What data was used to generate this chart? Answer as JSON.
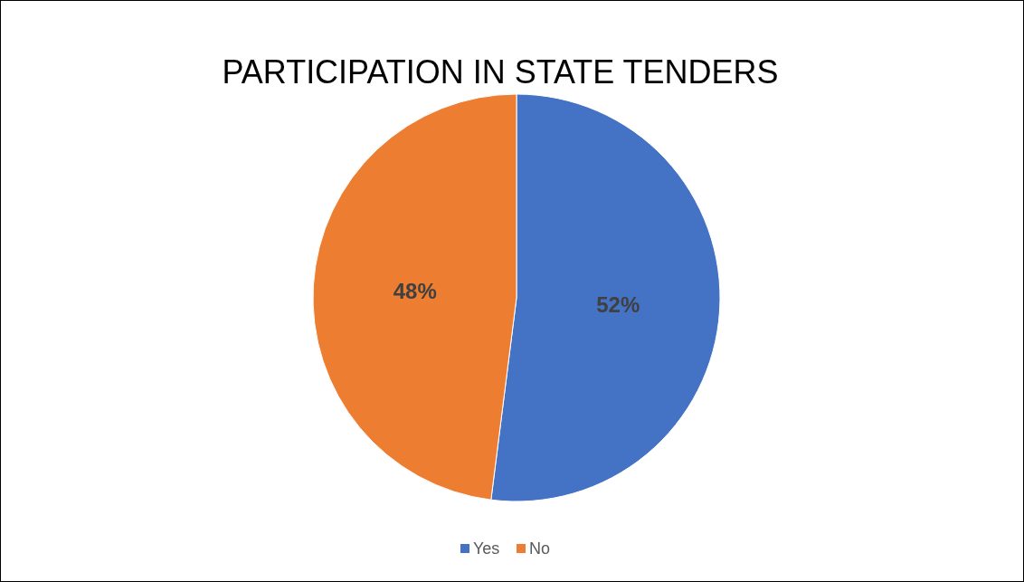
{
  "chart_data": {
    "type": "pie",
    "title": "PARTICIPATION IN STATE TENDERS",
    "categories": [
      "Yes",
      "No"
    ],
    "values": [
      52,
      48
    ],
    "value_labels": [
      "52%",
      "48%"
    ],
    "colors": [
      "#4472c4",
      "#ed7d31"
    ],
    "legend": "bottom"
  }
}
